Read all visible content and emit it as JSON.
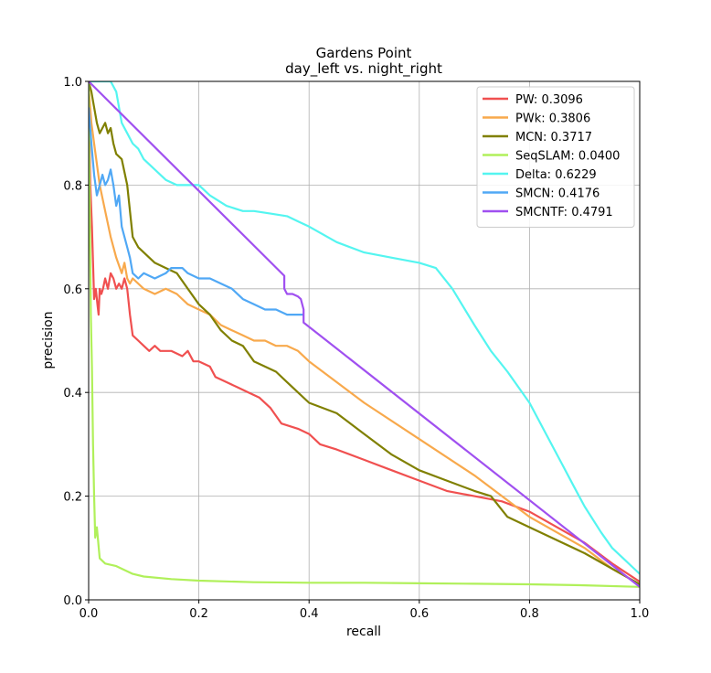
{
  "chart_data": {
    "type": "line",
    "title": "Gardens Point",
    "subtitle": "day_left vs. night_right",
    "xlabel": "recall",
    "ylabel": "precision",
    "xlim": [
      0,
      1
    ],
    "ylim": [
      0,
      1
    ],
    "xticks": [
      "0.0",
      "0.2",
      "0.4",
      "0.6",
      "0.8",
      "1.0"
    ],
    "yticks": [
      "0.0",
      "0.2",
      "0.4",
      "0.6",
      "0.8",
      "1.0"
    ],
    "grid": true,
    "legend_position": "top-right",
    "series": [
      {
        "name": "PW: 0.3096",
        "color": "#f05050",
        "x": [
          0.0,
          0.003,
          0.006,
          0.008,
          0.01,
          0.013,
          0.016,
          0.018,
          0.02,
          0.023,
          0.026,
          0.03,
          0.035,
          0.04,
          0.045,
          0.05,
          0.055,
          0.06,
          0.065,
          0.07,
          0.075,
          0.08,
          0.09,
          0.1,
          0.11,
          0.12,
          0.13,
          0.15,
          0.17,
          0.18,
          0.19,
          0.2,
          0.22,
          0.23,
          0.25,
          0.27,
          0.29,
          0.31,
          0.33,
          0.35,
          0.38,
          0.4,
          0.42,
          0.45,
          0.5,
          0.55,
          0.6,
          0.65,
          0.7,
          0.75,
          0.8,
          0.85,
          0.9,
          0.95,
          1.0
        ],
        "y": [
          0.99,
          0.8,
          0.72,
          0.65,
          0.58,
          0.6,
          0.57,
          0.55,
          0.6,
          0.59,
          0.6,
          0.62,
          0.6,
          0.63,
          0.62,
          0.6,
          0.61,
          0.6,
          0.62,
          0.6,
          0.55,
          0.51,
          0.5,
          0.49,
          0.48,
          0.49,
          0.48,
          0.48,
          0.47,
          0.48,
          0.46,
          0.46,
          0.45,
          0.43,
          0.42,
          0.41,
          0.4,
          0.39,
          0.37,
          0.34,
          0.33,
          0.32,
          0.3,
          0.29,
          0.27,
          0.25,
          0.23,
          0.21,
          0.2,
          0.19,
          0.17,
          0.14,
          0.11,
          0.07,
          0.035
        ]
      },
      {
        "name": "PWk: 0.3806",
        "color": "#f8a94c",
        "x": [
          0.0,
          0.005,
          0.01,
          0.02,
          0.03,
          0.04,
          0.05,
          0.06,
          0.065,
          0.07,
          0.075,
          0.08,
          0.1,
          0.12,
          0.14,
          0.16,
          0.18,
          0.2,
          0.22,
          0.24,
          0.26,
          0.28,
          0.3,
          0.32,
          0.34,
          0.36,
          0.38,
          0.4,
          0.5,
          0.6,
          0.7,
          0.8,
          0.9,
          0.95,
          1.0
        ],
        "y": [
          0.99,
          0.92,
          0.88,
          0.8,
          0.75,
          0.7,
          0.66,
          0.63,
          0.65,
          0.62,
          0.61,
          0.62,
          0.6,
          0.59,
          0.6,
          0.59,
          0.57,
          0.56,
          0.55,
          0.53,
          0.52,
          0.51,
          0.5,
          0.5,
          0.49,
          0.49,
          0.48,
          0.46,
          0.38,
          0.31,
          0.24,
          0.16,
          0.1,
          0.06,
          0.03
        ]
      },
      {
        "name": "MCN: 0.3717",
        "color": "#808000",
        "x": [
          0.0,
          0.005,
          0.01,
          0.015,
          0.02,
          0.025,
          0.03,
          0.035,
          0.04,
          0.045,
          0.05,
          0.06,
          0.07,
          0.075,
          0.08,
          0.09,
          0.1,
          0.12,
          0.14,
          0.16,
          0.18,
          0.2,
          0.22,
          0.24,
          0.26,
          0.28,
          0.3,
          0.32,
          0.34,
          0.36,
          0.38,
          0.4,
          0.45,
          0.5,
          0.55,
          0.6,
          0.65,
          0.7,
          0.73,
          0.76,
          0.8,
          0.9,
          1.0
        ],
        "y": [
          1.0,
          0.98,
          0.95,
          0.92,
          0.9,
          0.91,
          0.92,
          0.9,
          0.91,
          0.88,
          0.86,
          0.85,
          0.8,
          0.75,
          0.7,
          0.68,
          0.67,
          0.65,
          0.64,
          0.63,
          0.6,
          0.57,
          0.55,
          0.52,
          0.5,
          0.49,
          0.46,
          0.45,
          0.44,
          0.42,
          0.4,
          0.38,
          0.36,
          0.32,
          0.28,
          0.25,
          0.23,
          0.21,
          0.2,
          0.16,
          0.14,
          0.09,
          0.03
        ]
      },
      {
        "name": "SeqSLAM: 0.0400",
        "color": "#b0f05a",
        "x": [
          0.0,
          0.002,
          0.004,
          0.006,
          0.008,
          0.01,
          0.012,
          0.015,
          0.02,
          0.03,
          0.05,
          0.08,
          0.1,
          0.15,
          0.2,
          0.3,
          0.4,
          0.5,
          0.6,
          0.7,
          0.8,
          0.9,
          1.0
        ],
        "y": [
          1.0,
          0.75,
          0.55,
          0.45,
          0.3,
          0.2,
          0.12,
          0.14,
          0.08,
          0.07,
          0.065,
          0.05,
          0.045,
          0.04,
          0.037,
          0.034,
          0.033,
          0.033,
          0.032,
          0.031,
          0.03,
          0.028,
          0.025
        ]
      },
      {
        "name": "Delta: 0.6229",
        "color": "#54f5f0",
        "x": [
          0.0,
          0.01,
          0.02,
          0.03,
          0.04,
          0.05,
          0.06,
          0.07,
          0.08,
          0.09,
          0.1,
          0.12,
          0.14,
          0.16,
          0.18,
          0.2,
          0.22,
          0.25,
          0.28,
          0.3,
          0.33,
          0.36,
          0.38,
          0.4,
          0.45,
          0.5,
          0.55,
          0.6,
          0.63,
          0.66,
          0.7,
          0.73,
          0.76,
          0.8,
          0.83,
          0.86,
          0.88,
          0.9,
          0.93,
          0.95,
          0.97,
          0.99,
          1.0
        ],
        "y": [
          1.0,
          1.0,
          1.0,
          1.0,
          1.0,
          0.98,
          0.92,
          0.9,
          0.88,
          0.87,
          0.85,
          0.83,
          0.81,
          0.8,
          0.8,
          0.8,
          0.78,
          0.76,
          0.75,
          0.75,
          0.745,
          0.74,
          0.73,
          0.72,
          0.69,
          0.67,
          0.66,
          0.65,
          0.64,
          0.6,
          0.53,
          0.48,
          0.44,
          0.38,
          0.32,
          0.26,
          0.22,
          0.18,
          0.13,
          0.1,
          0.08,
          0.06,
          0.05
        ]
      },
      {
        "name": "SMCN: 0.4176",
        "color": "#50a8f5",
        "x": [
          0.0,
          0.005,
          0.01,
          0.015,
          0.02,
          0.025,
          0.03,
          0.035,
          0.04,
          0.045,
          0.05,
          0.055,
          0.06,
          0.07,
          0.075,
          0.08,
          0.09,
          0.1,
          0.12,
          0.14,
          0.15,
          0.17,
          0.18,
          0.2,
          0.22,
          0.24,
          0.26,
          0.28,
          0.3,
          0.32,
          0.34,
          0.36,
          0.38,
          0.39
        ],
        "y": [
          0.95,
          0.88,
          0.82,
          0.78,
          0.8,
          0.82,
          0.8,
          0.81,
          0.83,
          0.8,
          0.76,
          0.78,
          0.72,
          0.68,
          0.66,
          0.63,
          0.62,
          0.63,
          0.62,
          0.63,
          0.64,
          0.64,
          0.63,
          0.62,
          0.62,
          0.61,
          0.6,
          0.58,
          0.57,
          0.56,
          0.56,
          0.55,
          0.55,
          0.55
        ]
      },
      {
        "name": "SMCNTF: 0.4791",
        "color": "#a050f0",
        "x": [
          0.0,
          0.355,
          0.355,
          0.36,
          0.37,
          0.38,
          0.385,
          0.39,
          0.39,
          1.0
        ],
        "y": [
          1.0,
          0.625,
          0.6,
          0.59,
          0.59,
          0.585,
          0.58,
          0.56,
          0.535,
          0.025
        ]
      }
    ]
  }
}
